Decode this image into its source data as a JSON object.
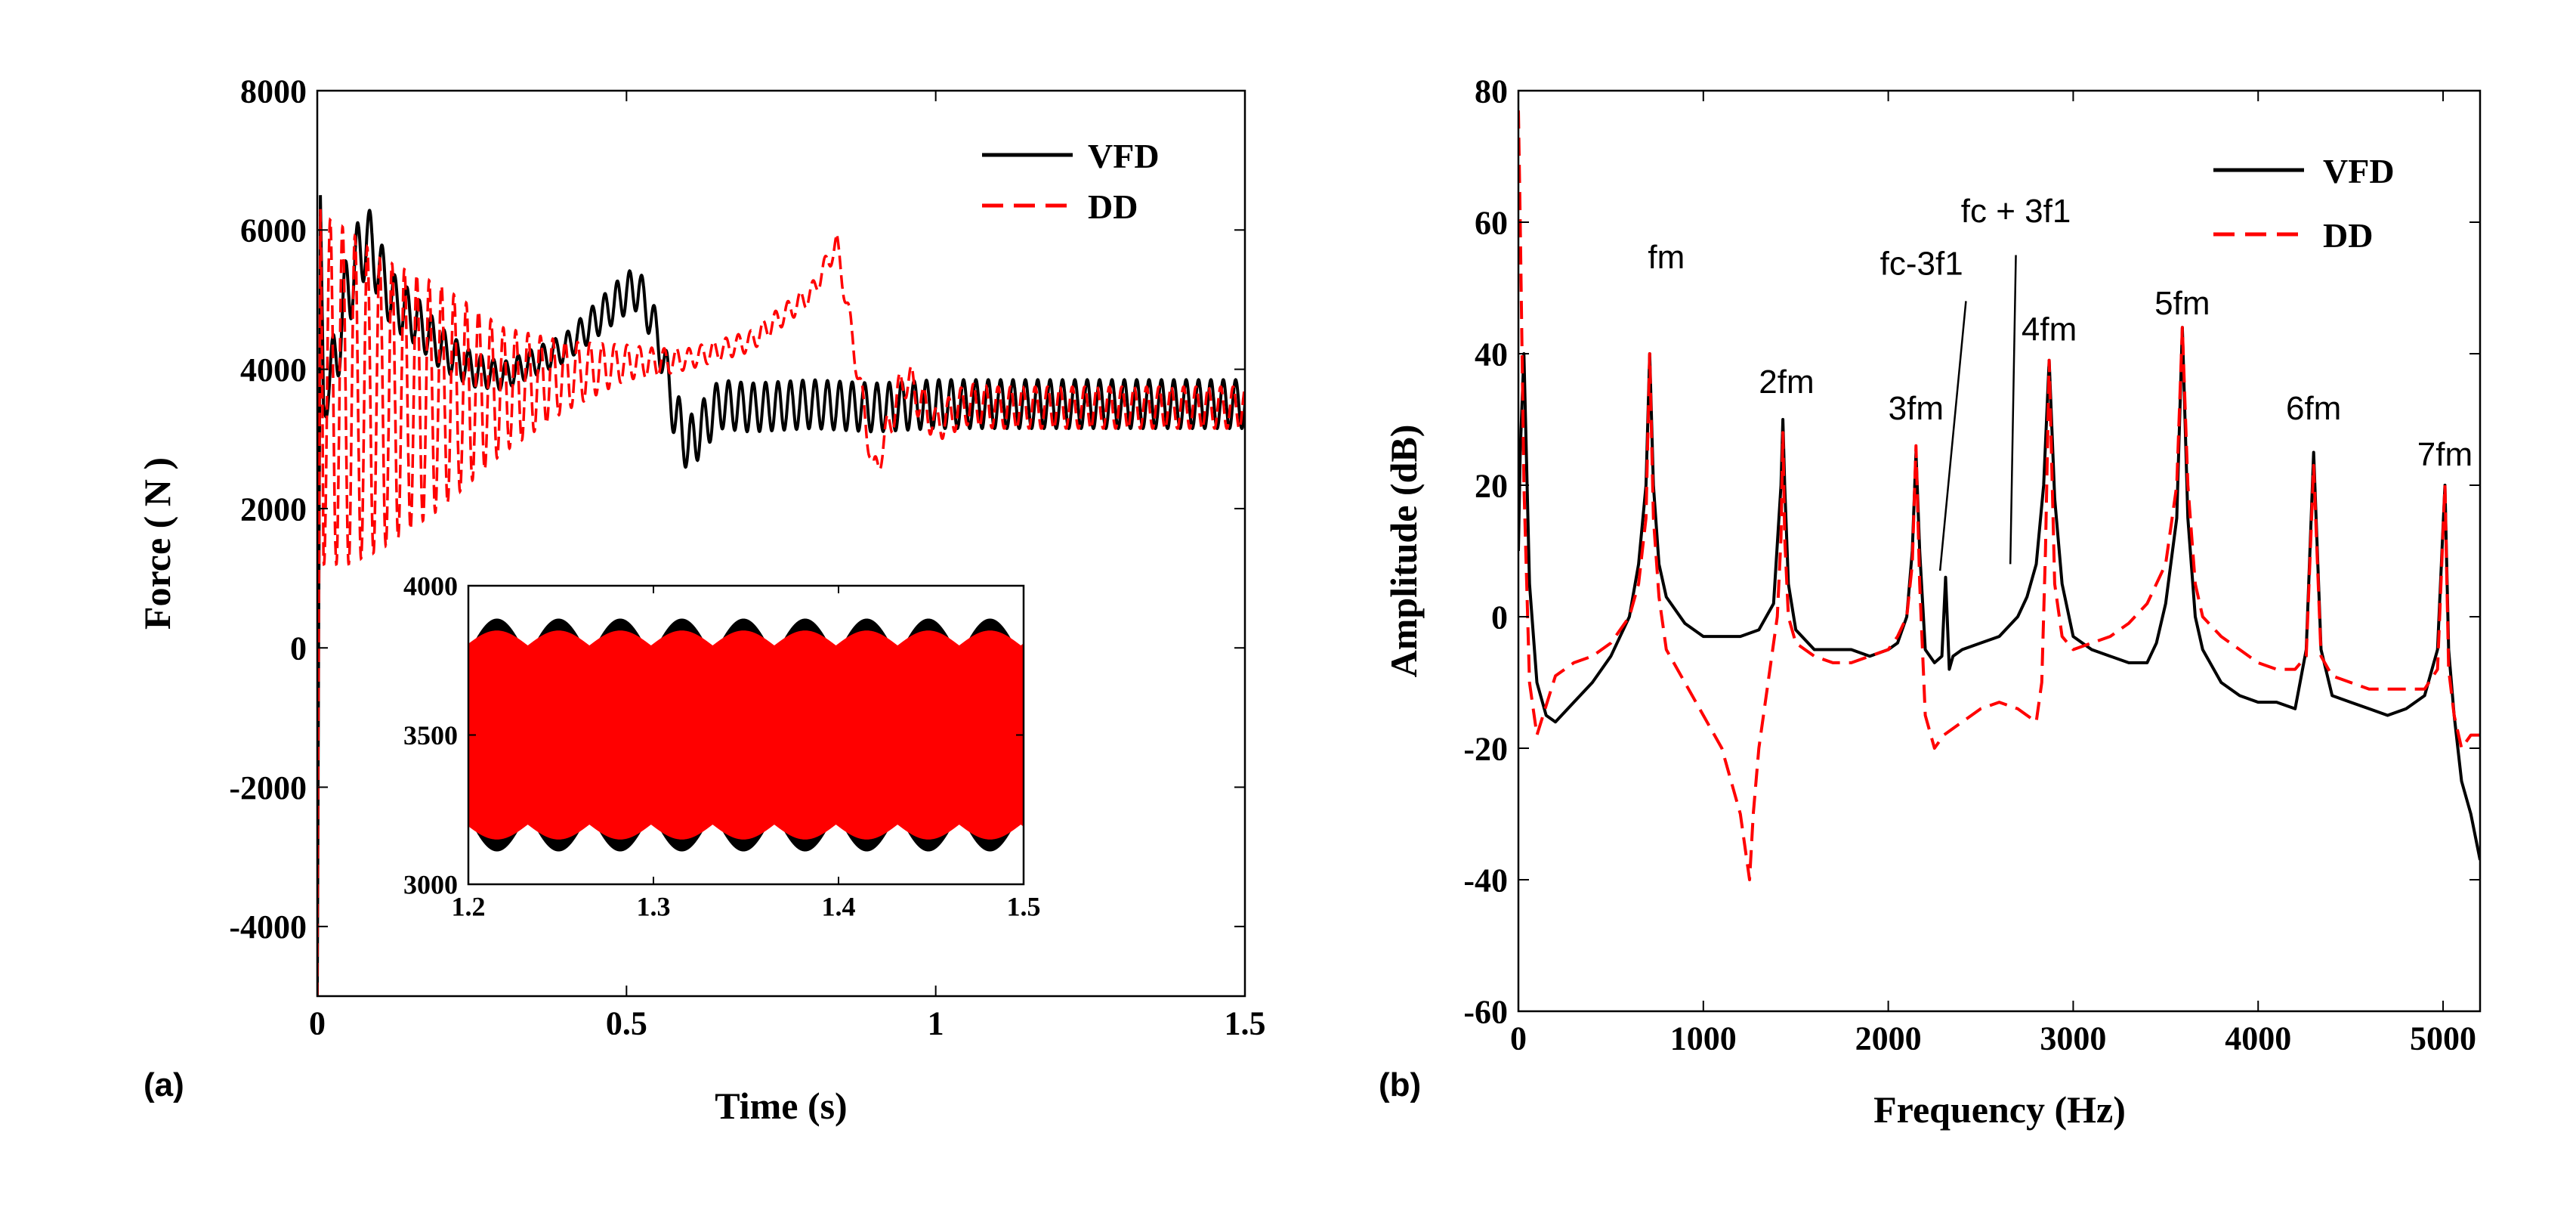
{
  "chart_data": [
    {
      "panel_label": "(a)",
      "type": "line",
      "xlabel": "Time (s)",
      "ylabel": "Force ( N )",
      "xlim": [
        0,
        1.5
      ],
      "ylim": [
        -5000,
        8000
      ],
      "xticks": [
        0,
        0.5,
        1,
        1.5
      ],
      "xtick_labels": [
        "0",
        "0.5",
        "1",
        "1.5"
      ],
      "yticks": [
        -4000,
        -2000,
        0,
        2000,
        4000,
        6000,
        8000
      ],
      "ytick_labels": [
        "-4000",
        "-2000",
        "0",
        "2000",
        "4000",
        "6000",
        "8000"
      ],
      "legend": {
        "position": "top-right",
        "entries": [
          "VFD",
          "DD"
        ]
      },
      "series": [
        {
          "name": "VFD",
          "color": "#000000",
          "style": "solid",
          "x": [
            0,
            0.005,
            0.01,
            0.03,
            0.05,
            0.08,
            0.12,
            0.16,
            0.2,
            0.25,
            0.3,
            0.35,
            0.4,
            0.45,
            0.5,
            0.52,
            0.55,
            0.58,
            0.6,
            0.65,
            0.7,
            0.8,
            0.9,
            1.0,
            1.2,
            1.5
          ],
          "y": [
            -5000,
            6500,
            3500,
            4200,
            5200,
            5900,
            5000,
            4700,
            4300,
            4000,
            3900,
            4100,
            4300,
            4700,
            5100,
            5150,
            4500,
            3300,
            2900,
            3500,
            3450,
            3500,
            3450,
            3500,
            3500,
            3500
          ],
          "ripple_amplitude": [
            0,
            0,
            300,
            500,
            600,
            500,
            400,
            350,
            300,
            250,
            200,
            200,
            200,
            250,
            300,
            300,
            300,
            400,
            400,
            350,
            350,
            350,
            350,
            350,
            350,
            350
          ]
        },
        {
          "name": "DD",
          "color": "#ff0000",
          "style": "dashed",
          "x": [
            0,
            0.005,
            0.01,
            0.05,
            0.1,
            0.2,
            0.3,
            0.4,
            0.5,
            0.55,
            0.6,
            0.7,
            0.8,
            0.84,
            0.87,
            0.9,
            0.95,
            1.0,
            1.05,
            1.1,
            1.2,
            1.5
          ],
          "y": [
            -5000,
            6300,
            3700,
            3600,
            3500,
            3600,
            3700,
            3900,
            4100,
            4100,
            4150,
            4400,
            5100,
            5800,
            4200,
            2500,
            3900,
            3200,
            3500,
            3450,
            3450,
            3450
          ],
          "ripple_amplitude": [
            0,
            0,
            2500,
            2400,
            2100,
            1600,
            900,
            500,
            250,
            200,
            150,
            150,
            150,
            150,
            200,
            200,
            300,
            250,
            300,
            300,
            300,
            300
          ]
        }
      ],
      "inset": {
        "xlim": [
          1.2,
          1.5
        ],
        "ylim": [
          3000,
          4000
        ],
        "xticks": [
          1.2,
          1.3,
          1.4,
          1.5
        ],
        "xtick_labels": [
          "1.2",
          "1.3",
          "1.4",
          "1.5"
        ],
        "yticks": [
          3000,
          3500,
          4000
        ],
        "ytick_labels": [
          "3000",
          "3500",
          "4000"
        ],
        "series": [
          {
            "name": "VFD",
            "color": "#000000",
            "mean": 3500,
            "amplitude_max": 390,
            "amplitude_min": 260,
            "envelope_period": 0.0333
          },
          {
            "name": "DD",
            "color": "#ff0000",
            "mean": 3500,
            "amplitude_max": 350,
            "amplitude_min": 300,
            "envelope_period": 0.0333
          }
        ]
      }
    },
    {
      "panel_label": "(b)",
      "type": "line",
      "xlabel": "Frequency (Hz)",
      "ylabel": "Amplitude (dB)",
      "xlim": [
        0,
        5200
      ],
      "ylim": [
        -60,
        80
      ],
      "xticks": [
        0,
        1000,
        2000,
        3000,
        4000,
        5000
      ],
      "xtick_labels": [
        "0",
        "1000",
        "2000",
        "3000",
        "4000",
        "5000"
      ],
      "yticks": [
        -60,
        -40,
        -20,
        0,
        20,
        40,
        60,
        80
      ],
      "ytick_labels": [
        "-60",
        "-40",
        "-20",
        "0",
        "20",
        "40",
        "60",
        "80"
      ],
      "legend": {
        "position": "top-right",
        "entries": [
          "VFD",
          "DD"
        ]
      },
      "annotations": [
        {
          "text": "fm",
          "x": 800,
          "y": 53
        },
        {
          "text": "2fm",
          "x": 1450,
          "y": 34
        },
        {
          "text": "3fm",
          "x": 2150,
          "y": 30
        },
        {
          "text": "fc-3f1",
          "x": 2180,
          "y": 52
        },
        {
          "text": "fc + 3f1",
          "x": 2690,
          "y": 60
        },
        {
          "text": "4fm",
          "x": 2870,
          "y": 42
        },
        {
          "text": "5fm",
          "x": 3590,
          "y": 46
        },
        {
          "text": "6fm",
          "x": 4300,
          "y": 30
        },
        {
          "text": "7fm",
          "x": 5010,
          "y": 23
        }
      ],
      "series": [
        {
          "name": "VFD",
          "color": "#000000",
          "style": "solid",
          "x": [
            0,
            10,
            30,
            60,
            100,
            150,
            200,
            300,
            400,
            500,
            600,
            650,
            690,
            710,
            730,
            760,
            800,
            900,
            1000,
            1100,
            1200,
            1300,
            1380,
            1420,
            1430,
            1440,
            1460,
            1500,
            1600,
            1700,
            1800,
            1900,
            2000,
            2050,
            2100,
            2130,
            2150,
            2170,
            2200,
            2250,
            2290,
            2310,
            2330,
            2350,
            2400,
            2500,
            2600,
            2700,
            2750,
            2800,
            2840,
            2870,
            2900,
            2940,
            3000,
            3100,
            3200,
            3300,
            3400,
            3450,
            3500,
            3560,
            3590,
            3620,
            3660,
            3700,
            3800,
            3900,
            4000,
            4100,
            4200,
            4260,
            4300,
            4340,
            4400,
            4500,
            4600,
            4700,
            4800,
            4900,
            4970,
            5010,
            5030,
            5060,
            5100,
            5150,
            5200
          ],
          "y": [
            10,
            25,
            40,
            5,
            -10,
            -15,
            -16,
            -13,
            -10,
            -6,
            0,
            8,
            20,
            40,
            20,
            8,
            3,
            -1,
            -3,
            -3,
            -3,
            -2,
            2,
            20,
            30,
            20,
            5,
            -2,
            -5,
            -5,
            -5,
            -6,
            -5,
            -4,
            0,
            10,
            25,
            10,
            -5,
            -7,
            -6,
            6,
            -8,
            -6,
            -5,
            -4,
            -3,
            0,
            3,
            8,
            20,
            39,
            18,
            5,
            -3,
            -5,
            -6,
            -7,
            -7,
            -4,
            2,
            15,
            44,
            15,
            0,
            -5,
            -10,
            -12,
            -13,
            -13,
            -14,
            -5,
            25,
            -5,
            -12,
            -13,
            -14,
            -15,
            -14,
            -12,
            -5,
            20,
            -5,
            -15,
            -25,
            -30,
            -37
          ]
        },
        {
          "name": "DD",
          "color": "#ff0000",
          "style": "dashed",
          "x": [
            0,
            10,
            30,
            60,
            100,
            200,
            300,
            400,
            500,
            600,
            650,
            690,
            710,
            730,
            760,
            800,
            900,
            1000,
            1100,
            1200,
            1250,
            1270,
            1300,
            1350,
            1400,
            1420,
            1430,
            1440,
            1460,
            1500,
            1600,
            1700,
            1800,
            1900,
            2000,
            2050,
            2100,
            2130,
            2150,
            2170,
            2200,
            2250,
            2300,
            2400,
            2500,
            2600,
            2700,
            2750,
            2800,
            2830,
            2850,
            2870,
            2900,
            2940,
            3000,
            3100,
            3200,
            3300,
            3400,
            3500,
            3560,
            3590,
            3620,
            3660,
            3700,
            3800,
            3900,
            4000,
            4100,
            4200,
            4260,
            4300,
            4340,
            4400,
            4500,
            4600,
            4700,
            4800,
            4900,
            4970,
            5010,
            5030,
            5060,
            5100,
            5150,
            5200
          ],
          "y": [
            77,
            60,
            20,
            -10,
            -18,
            -9,
            -7,
            -6,
            -4,
            0,
            5,
            15,
            40,
            15,
            3,
            -5,
            -10,
            -15,
            -20,
            -30,
            -40,
            -30,
            -20,
            -10,
            0,
            12,
            28,
            12,
            0,
            -4,
            -6,
            -7,
            -7,
            -6,
            -5,
            -3,
            0,
            8,
            26,
            5,
            -15,
            -20,
            -18,
            -16,
            -14,
            -13,
            -14,
            -15,
            -16,
            -10,
            10,
            39,
            5,
            -3,
            -5,
            -4,
            -3,
            -1,
            2,
            8,
            20,
            44,
            20,
            5,
            0,
            -3,
            -5,
            -7,
            -8,
            -8,
            -6,
            23,
            -6,
            -9,
            -10,
            -11,
            -11,
            -11,
            -11,
            -8,
            20,
            -8,
            -15,
            -20,
            -18,
            -18
          ]
        }
      ]
    }
  ]
}
